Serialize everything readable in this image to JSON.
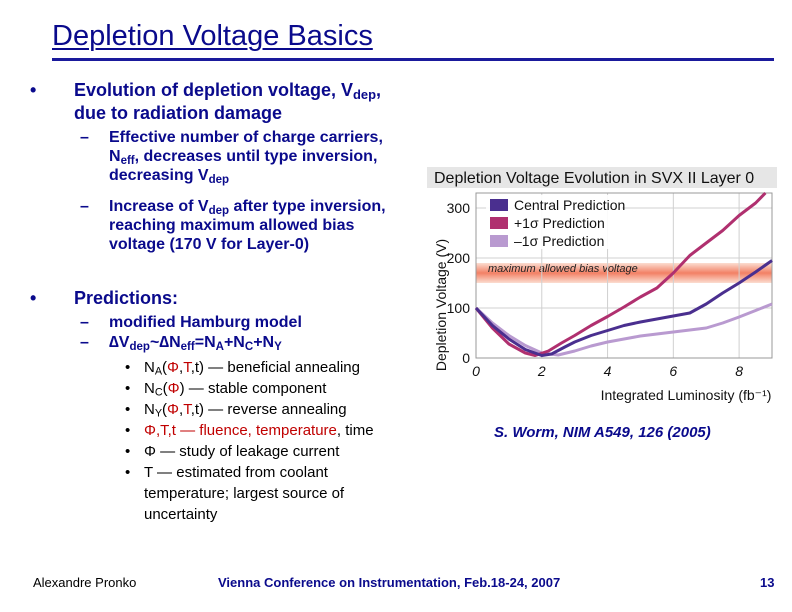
{
  "slide": {
    "title": "Depletion Voltage Basics",
    "bullet1": {
      "marker": "•",
      "line1_pre": "Evolution of depletion voltage, V",
      "line1_sub": "dep",
      "line1_post": ",",
      "line2": "due to radiation damage",
      "sub1": {
        "marker": "–",
        "l1": "Effective number of charge carriers,",
        "l2_pre": "N",
        "l2_sub": "eff",
        "l2_post": ", decreases until type inversion,",
        "l3_pre": "decreasing V",
        "l3_sub": "dep"
      },
      "sub2": {
        "marker": "–",
        "l1_pre": "Increase of V",
        "l1_sub": "dep",
        "l1_post": " after type inversion,",
        "l2": "reaching maximum allowed bias",
        "l3": "voltage (170 V for Layer-0)"
      }
    },
    "bullet2": {
      "marker": "•",
      "text": "Predictions:",
      "sub1": {
        "marker": "–",
        "text": "modified Hamburg model"
      },
      "sub2": {
        "marker": "–",
        "p1": "∆V",
        "s1": "dep",
        "p2": "~∆N",
        "s2": "eff",
        "p3": "=N",
        "s3": "A",
        "p4": "+N",
        "s4": "C",
        "p5": "+N",
        "s5": "Y"
      },
      "items": [
        {
          "marker": "•",
          "pre": "N",
          "sub": "A",
          "a": "(",
          "phi": "Φ",
          "comma1": ",",
          "t": "T",
          "b": ",t) — beneficial annealing"
        },
        {
          "marker": "•",
          "pre": "N",
          "sub": "C",
          "a": "(",
          "phi": "Φ",
          "b": ") — stable component"
        },
        {
          "marker": "•",
          "pre": "N",
          "sub": "Y",
          "a": "(",
          "phi": "Φ",
          "comma1": ",",
          "t": "T",
          "b": ",t) — reverse annealing"
        }
      ],
      "item4": {
        "marker": "•",
        "red": "Φ,T,t — fluence, temperature",
        "black": ", time"
      },
      "item5": {
        "marker": "•",
        "text": "Φ — study of leakage current"
      },
      "item6": {
        "marker": "•",
        "l1": "T — estimated from coolant",
        "l2": "temperature; largest source of",
        "l3": "uncertainty"
      }
    },
    "citation": "S. Worm, NIM A549, 126 (2005)",
    "footer": {
      "author": "Alexandre Pronko",
      "conference": "Vienna Conference on Instrumentation, Feb.18-24, 2007",
      "page": "13"
    }
  },
  "chart_data": {
    "type": "line",
    "title": "Depletion Voltage Evolution in SVX II Layer 0",
    "xlabel": "Integrated Luminosity (fb⁻¹)",
    "ylabel": "Depletion Voltage (V)",
    "xlim": [
      0,
      9
    ],
    "ylim": [
      0,
      330
    ],
    "xticks": [
      0,
      2,
      4,
      6,
      8
    ],
    "yticks": [
      0,
      100,
      200,
      300
    ],
    "annotation": {
      "text": "maximum allowed bias voltage",
      "value": 170
    },
    "legend": [
      "Central Prediction",
      "+1σ Prediction",
      "–1σ Prediction"
    ],
    "series": [
      {
        "name": "Central Prediction",
        "color": "#4a2f8f",
        "x": [
          0,
          0.5,
          1.0,
          1.5,
          2.0,
          2.3,
          2.7,
          3.0,
          3.5,
          4.0,
          4.5,
          5.0,
          5.5,
          6.0,
          6.5,
          7.0,
          7.5,
          8.0,
          8.5,
          9.0
        ],
        "y": [
          100,
          65,
          38,
          17,
          5,
          8,
          22,
          32,
          45,
          55,
          65,
          72,
          78,
          84,
          90,
          108,
          130,
          150,
          172,
          195
        ]
      },
      {
        "name": "+1σ Prediction",
        "color": "#b0306f",
        "x": [
          0,
          0.5,
          1.0,
          1.5,
          1.8,
          2.2,
          2.6,
          3.0,
          3.5,
          4.0,
          4.5,
          5.0,
          5.5,
          6.0,
          6.5,
          7.0,
          7.5,
          8.0,
          8.5,
          8.8
        ],
        "y": [
          100,
          60,
          28,
          10,
          5,
          14,
          30,
          45,
          65,
          83,
          102,
          122,
          140,
          170,
          205,
          230,
          255,
          285,
          310,
          330
        ]
      },
      {
        "name": "–1σ Prediction",
        "color": "#b99ad0",
        "x": [
          0,
          0.5,
          1.0,
          1.5,
          2.0,
          2.5,
          3.0,
          3.5,
          4.0,
          4.5,
          5.0,
          5.5,
          6.0,
          6.5,
          7.0,
          7.5,
          8.0,
          8.5,
          9.0
        ],
        "y": [
          100,
          70,
          45,
          25,
          10,
          6,
          14,
          24,
          32,
          38,
          44,
          48,
          52,
          56,
          60,
          70,
          82,
          95,
          108
        ]
      }
    ]
  }
}
